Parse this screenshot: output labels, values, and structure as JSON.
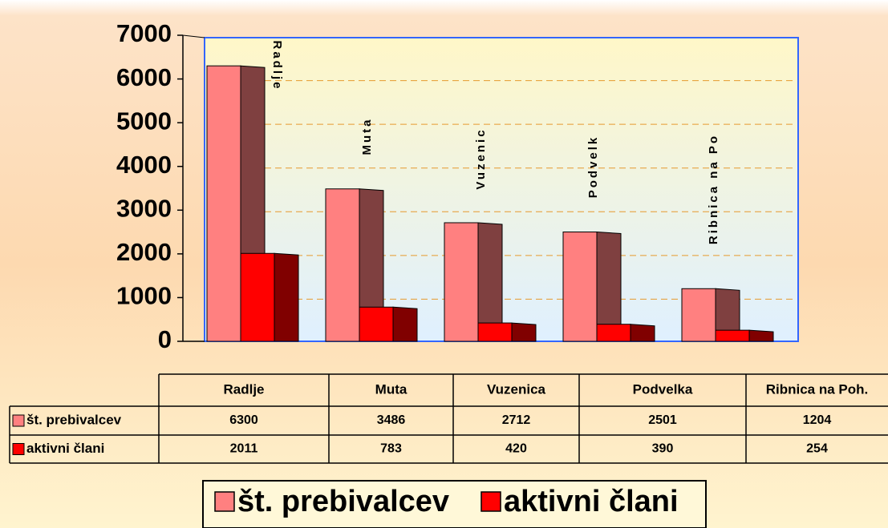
{
  "chart_data": {
    "type": "bar",
    "categories": [
      "Radlje",
      "Muta",
      "Vuzenica",
      "Podvelka",
      "Ribnica na Poh."
    ],
    "series": [
      {
        "name": "št. prebivalcev",
        "color": "#ff8080",
        "side_color": "#7f4040",
        "values": [
          6300,
          3486,
          2712,
          2501,
          1204
        ]
      },
      {
        "name": "aktivni člani",
        "color": "#ff0000",
        "side_color": "#800000",
        "values": [
          2011,
          783,
          420,
          390,
          254
        ]
      }
    ],
    "annotations": [
      "Radlje",
      "Muta",
      "Vuzenic",
      "Podvelk",
      "Ribnica na Po"
    ],
    "ylim": [
      0,
      7000
    ],
    "yticks": [
      0,
      1000,
      2000,
      3000,
      4000,
      5000,
      6000,
      7000
    ],
    "grid": true,
    "legend": "bottom"
  }
}
